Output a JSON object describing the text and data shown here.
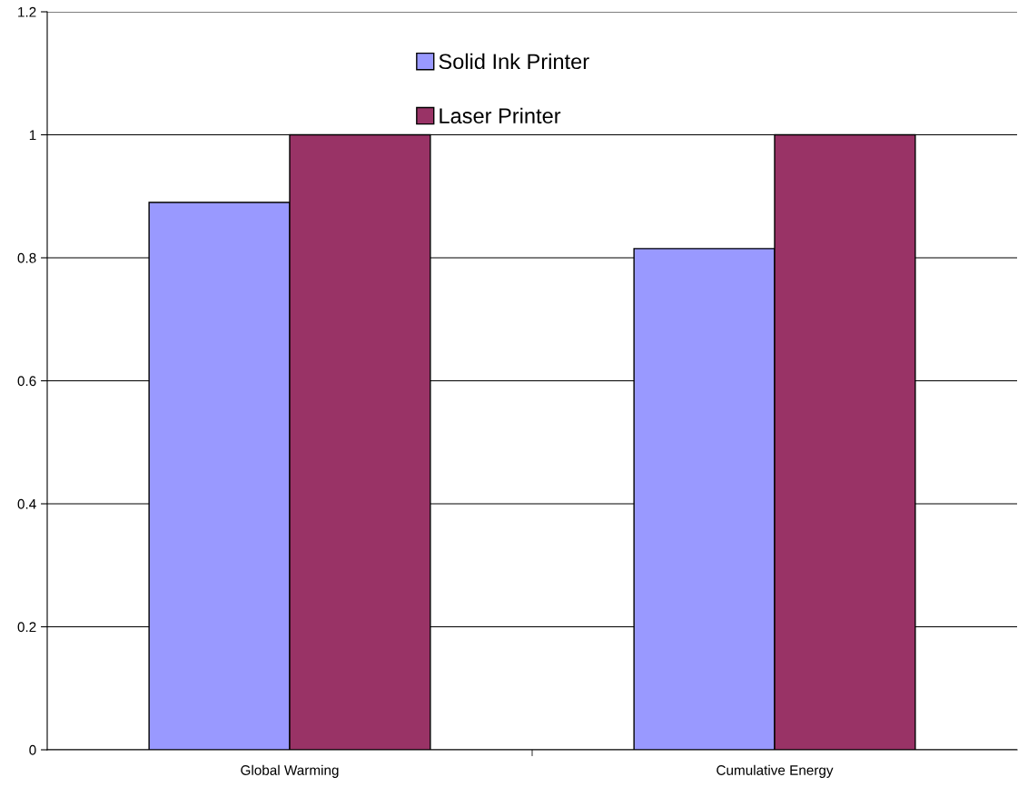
{
  "chart_data": {
    "type": "bar",
    "categories": [
      "Global Warming",
      "Cumulative Energy"
    ],
    "series": [
      {
        "name": "Solid Ink Printer",
        "color": "#9999ff",
        "values": [
          0.89,
          0.815
        ]
      },
      {
        "name": "Laser Printer",
        "color": "#993366",
        "values": [
          1,
          1
        ]
      }
    ],
    "ylim": [
      0,
      1.2
    ],
    "yticks": [
      0,
      0.2,
      0.4,
      0.6,
      0.8,
      1,
      1.2
    ],
    "grid": "y",
    "legend": "top"
  }
}
